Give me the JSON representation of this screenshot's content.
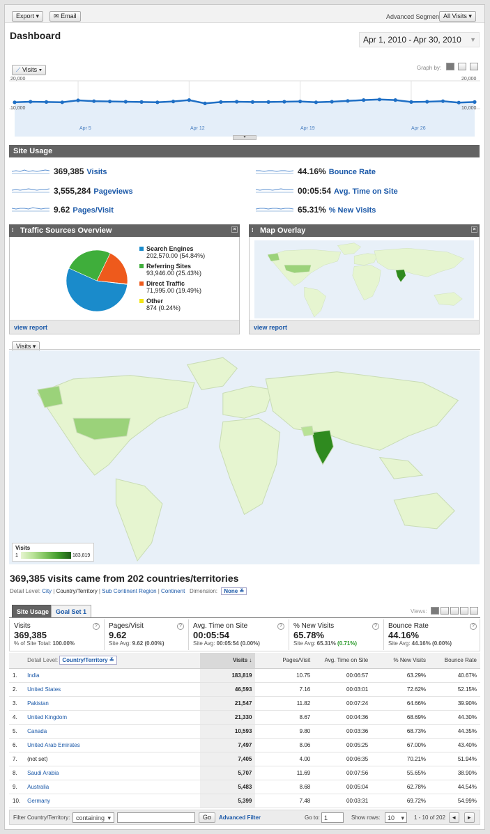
{
  "toolbar": {
    "export_label": "Export",
    "email_label": "Email",
    "segments_label": "Advanced Segments:",
    "segments_value": "All Visits"
  },
  "page_title": "Dashboard",
  "date_range": "Apr 1, 2010 - Apr 30, 2010",
  "graph": {
    "metric_label": "Visits",
    "graph_by_label": "Graph by:",
    "y_max_left": "20,000",
    "y_max_right": "20,000",
    "y_mid_left": "10,000",
    "y_mid_right": "10,000",
    "x_labels": [
      "Apr 5",
      "Apr 12",
      "Apr 19",
      "Apr 26"
    ]
  },
  "chart_data": {
    "type": "line",
    "x": [
      "Apr 1",
      "Apr 2",
      "Apr 3",
      "Apr 4",
      "Apr 5",
      "Apr 6",
      "Apr 7",
      "Apr 8",
      "Apr 9",
      "Apr 10",
      "Apr 11",
      "Apr 12",
      "Apr 13",
      "Apr 14",
      "Apr 15",
      "Apr 16",
      "Apr 17",
      "Apr 18",
      "Apr 19",
      "Apr 20",
      "Apr 21",
      "Apr 22",
      "Apr 23",
      "Apr 24",
      "Apr 25",
      "Apr 26",
      "Apr 27",
      "Apr 28",
      "Apr 29",
      "Apr 30"
    ],
    "series": [
      {
        "values": [
          12300,
          12500,
          12400,
          12300,
          13000,
          12700,
          12600,
          12500,
          12400,
          12300,
          12600,
          13100,
          11900,
          12400,
          12500,
          12400,
          12400,
          12500,
          12600,
          12300,
          12500,
          12800,
          13100,
          13300,
          13100,
          12400,
          12500,
          12700,
          12200,
          12400
        ]
      }
    ],
    "ylim": [
      0,
      20000
    ],
    "grid": true
  },
  "site_usage": {
    "title": "Site Usage",
    "metrics": [
      {
        "value": "369,385",
        "label": "Visits"
      },
      {
        "value": "3,555,284",
        "label": "Pageviews"
      },
      {
        "value": "9.62",
        "label": "Pages/Visit"
      },
      {
        "value": "44.16%",
        "label": "Bounce Rate"
      },
      {
        "value": "00:05:54",
        "label": "Avg. Time on Site"
      },
      {
        "value": "65.31%",
        "label": "% New Visits"
      }
    ]
  },
  "traffic": {
    "title": "Traffic Sources Overview",
    "view_report": "view report",
    "sources": [
      {
        "name": "Search Engines",
        "value": "202,570.00 (54.84%)",
        "share": 54.84,
        "color": "#1a8bcb"
      },
      {
        "name": "Referring Sites",
        "value": "93,946.00 (25.43%)",
        "share": 25.43,
        "color": "#3fae3b"
      },
      {
        "name": "Direct Traffic",
        "value": "71,995.00 (19.49%)",
        "share": 19.49,
        "color": "#ee5a1c"
      },
      {
        "name": "Other",
        "value": "874 (0.24%)",
        "share": 0.24,
        "color": "#f2e516"
      }
    ]
  },
  "map_overlay": {
    "title": "Map Overlay",
    "view_report": "view report"
  },
  "big_map": {
    "metric_label": "Visits",
    "legend_title": "Visits",
    "legend_min": "1",
    "legend_max": "183,819"
  },
  "summary": {
    "headline": "369,385 visits came from 202 countries/territories",
    "detail_label": "Detail Level:",
    "levels": [
      "City",
      "Country/Territory",
      "Sub Continent Region",
      "Continent"
    ],
    "dimension_label": "Dimension:",
    "dimension_value": "None",
    "views_label": "Views:"
  },
  "tabs": [
    "Site Usage",
    "Goal Set 1"
  ],
  "stats": [
    {
      "title": "Visits",
      "value": "369,385",
      "sub": "% of Site Total:",
      "subval": "100.00%"
    },
    {
      "title": "Pages/Visit",
      "value": "9.62",
      "sub": "Site Avg:",
      "subval": "9.62 (0.00%)"
    },
    {
      "title": "Avg. Time on Site",
      "value": "00:05:54",
      "sub": "Site Avg:",
      "subval": "00:05:54 (0.00%)"
    },
    {
      "title": "% New Visits",
      "value": "65.78%",
      "sub": "Site Avg:",
      "subval": "65.31%",
      "delta": "(0.71%)"
    },
    {
      "title": "Bounce Rate",
      "value": "44.16%",
      "sub": "Site Avg:",
      "subval": "44.16% (0.00%)"
    }
  ],
  "table": {
    "detail_label": "Detail Level:",
    "detail_value": "Country/Territory",
    "columns": [
      "Visits",
      "Pages/Visit",
      "Avg. Time on Site",
      "% New Visits",
      "Bounce Rate"
    ],
    "rows": [
      [
        "1.",
        "India",
        "183,819",
        "10.75",
        "00:06:57",
        "63.29%",
        "40.67%"
      ],
      [
        "2.",
        "United States",
        "46,593",
        "7.16",
        "00:03:01",
        "72.62%",
        "52.15%"
      ],
      [
        "3.",
        "Pakistan",
        "21,547",
        "11.82",
        "00:07:24",
        "64.66%",
        "39.90%"
      ],
      [
        "4.",
        "United Kingdom",
        "21,330",
        "8.67",
        "00:04:36",
        "68.69%",
        "44.30%"
      ],
      [
        "5.",
        "Canada",
        "10,593",
        "9.80",
        "00:03:36",
        "68.73%",
        "44.35%"
      ],
      [
        "6.",
        "United Arab Emirates",
        "7,497",
        "8.06",
        "00:05:25",
        "67.00%",
        "43.40%"
      ],
      [
        "7.",
        "(not set)",
        "7,405",
        "4.00",
        "00:06:35",
        "70.21%",
        "51.94%"
      ],
      [
        "8.",
        "Saudi Arabia",
        "5,707",
        "11.69",
        "00:07:56",
        "55.65%",
        "38.90%"
      ],
      [
        "9.",
        "Australia",
        "5,483",
        "8.68",
        "00:05:04",
        "62.78%",
        "44.54%"
      ],
      [
        "10.",
        "Germany",
        "5,399",
        "7.48",
        "00:03:31",
        "69.72%",
        "54.99%"
      ]
    ]
  },
  "footer": {
    "filter_label": "Filter Country/Territory:",
    "filter_mode": "containing",
    "go_label": "Go",
    "advanced_filter": "Advanced Filter",
    "goto_label": "Go to:",
    "goto_value": "1",
    "show_rows_label": "Show rows:",
    "show_rows_value": "10",
    "range": "1 - 10 of 202"
  }
}
